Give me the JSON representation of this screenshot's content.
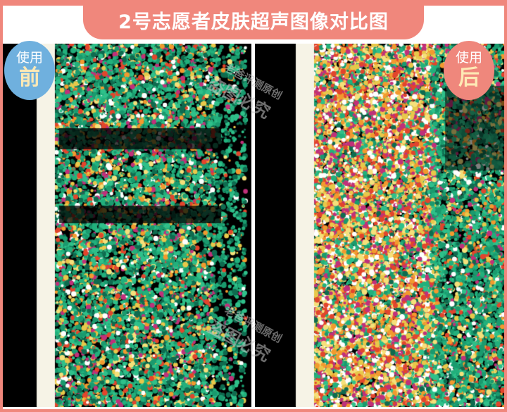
{
  "title": "2号志愿者皮肤超声图像对比图",
  "badges": {
    "before": {
      "line1": "使用",
      "line2": "前"
    },
    "after": {
      "line1": "使用",
      "line2": "后"
    }
  },
  "watermark": {
    "line1": "老爸评测原创",
    "line2": "盗图必究"
  },
  "colors": {
    "accent": "#f0877c",
    "before_badge": "#6fb0de",
    "after_badge": "#ef877c",
    "badge_highlight": "#fde9b5"
  },
  "images": {
    "before": "skin-ultrasound-before",
    "after": "skin-ultrasound-after"
  }
}
